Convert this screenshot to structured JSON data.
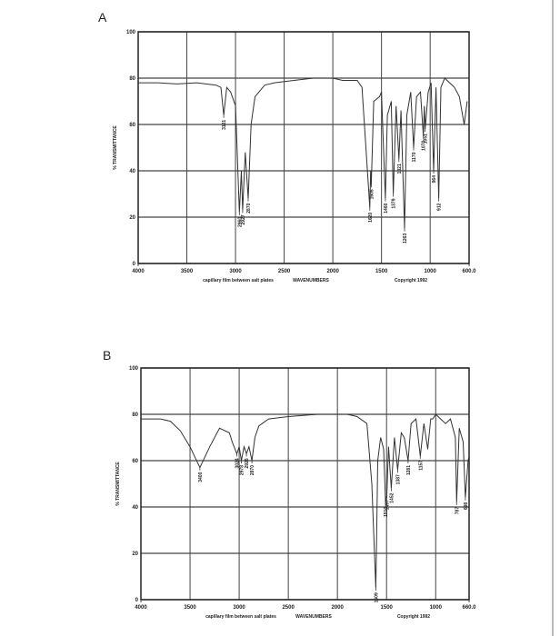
{
  "chart_data": [
    {
      "type": "line",
      "label": "A",
      "x": [
        4000,
        3800,
        3600,
        3400,
        3200,
        3150,
        3121,
        3090,
        3050,
        3000,
        2960,
        2940,
        2927,
        2900,
        2870,
        2840,
        2800,
        2700,
        2600,
        2400,
        2200,
        2000,
        1900,
        1750,
        1700,
        1660,
        1620,
        1612,
        1605,
        1580,
        1520,
        1500,
        1460,
        1440,
        1400,
        1379,
        1350,
        1321,
        1300,
        1263,
        1240,
        1200,
        1170,
        1140,
        1100,
        1070,
        1060,
        1051,
        1020,
        990,
        964,
        940,
        912,
        890,
        850,
        800,
        750,
        700,
        650,
        620
      ],
      "series": [
        {
          "color": "#333333",
          "values": [
            78,
            78,
            77.5,
            78,
            77,
            76,
            64,
            76,
            74,
            68,
            22,
            40,
            23,
            48,
            28,
            60,
            72,
            77,
            78,
            79,
            80,
            80,
            79,
            79,
            76,
            50,
            24,
            40,
            34,
            70,
            72,
            74,
            28,
            64,
            70,
            30,
            68,
            45,
            66,
            15,
            64,
            74,
            50,
            72,
            74,
            55,
            68,
            58,
            74,
            78,
            40,
            76,
            28,
            76,
            80,
            78,
            76,
            72,
            60,
            70
          ]
        }
      ],
      "xlim": [
        4000,
        600
      ],
      "ylim": [
        0,
        100
      ],
      "xticks": [
        4000,
        3500,
        3000,
        2500,
        2000,
        1500,
        1000,
        {
          "value": 600,
          "label": "600.0"
        }
      ],
      "yticks": [
        0,
        20,
        40,
        60,
        80,
        100
      ],
      "grid": true,
      "x_axis_label": "WAVENUMBERS",
      "y_axis_label": "% TRANSMITTANCE",
      "note": "capillary film between salt plates",
      "copyright": "Copyright 1992",
      "peaks": [
        {
          "x": 3121,
          "y": 64
        },
        {
          "x": 2960,
          "y": 22
        },
        {
          "x": 2927,
          "y": 23
        },
        {
          "x": 2870,
          "y": 28
        },
        {
          "x": 1620,
          "y": 24
        },
        {
          "x": 1605,
          "y": 34
        },
        {
          "x": 1460,
          "y": 28
        },
        {
          "x": 1379,
          "y": 30
        },
        {
          "x": 1321,
          "y": 45
        },
        {
          "x": 1263,
          "y": 15
        },
        {
          "x": 1170,
          "y": 50
        },
        {
          "x": 1070,
          "y": 55
        },
        {
          "x": 1051,
          "y": 58
        },
        {
          "x": 964,
          "y": 40
        },
        {
          "x": 912,
          "y": 28
        }
      ]
    },
    {
      "type": "line",
      "label": "B",
      "x": [
        4000,
        3800,
        3700,
        3600,
        3500,
        3400,
        3300,
        3200,
        3100,
        3070,
        3024,
        3000,
        2978,
        2950,
        2926,
        2900,
        2870,
        2840,
        2800,
        2700,
        2500,
        2200,
        2000,
        1900,
        1800,
        1700,
        1650,
        1609,
        1600,
        1590,
        1560,
        1530,
        1510,
        1497,
        1480,
        1452,
        1420,
        1387,
        1350,
        1320,
        1281,
        1250,
        1200,
        1157,
        1120,
        1081,
        1050,
        1030,
        1000,
        950,
        900,
        850,
        800,
        787,
        760,
        720,
        698,
        670,
        660
      ],
      "series": [
        {
          "color": "#333333",
          "values": [
            78,
            78,
            77,
            73,
            66,
            57,
            66,
            74,
            72,
            68,
            63,
            66,
            60,
            66,
            63,
            66,
            60,
            70,
            75,
            78,
            79,
            80,
            80,
            80,
            79,
            76,
            50,
            5,
            30,
            60,
            70,
            65,
            42,
            45,
            66,
            48,
            70,
            56,
            72,
            70,
            60,
            76,
            78,
            62,
            76,
            65,
            78,
            78,
            80,
            78,
            76,
            78,
            70,
            42,
            74,
            68,
            44,
            60,
            62
          ]
        }
      ],
      "xlim": [
        4000,
        660
      ],
      "ylim": [
        0,
        100
      ],
      "xticks": [
        4000,
        3500,
        3000,
        2500,
        2000,
        1500,
        1000,
        {
          "value": 660,
          "label": "660.0"
        }
      ],
      "yticks": [
        0,
        20,
        40,
        60,
        80,
        100
      ],
      "grid": true,
      "x_axis_label": "WAVENUMBERS",
      "y_axis_label": "% TRANSMITTANCE",
      "note": "capillary film between salt plates",
      "copyright": "Copyright 1992",
      "peaks": [
        {
          "x": 3400,
          "y": 57
        },
        {
          "x": 3024,
          "y": 63
        },
        {
          "x": 2978,
          "y": 60
        },
        {
          "x": 2926,
          "y": 63
        },
        {
          "x": 2870,
          "y": 60
        },
        {
          "x": 1609,
          "y": 5
        },
        {
          "x": 1510,
          "y": 42
        },
        {
          "x": 1497,
          "y": 45
        },
        {
          "x": 1452,
          "y": 48
        },
        {
          "x": 1387,
          "y": 56
        },
        {
          "x": 1281,
          "y": 60
        },
        {
          "x": 1157,
          "y": 62
        },
        {
          "x": 787,
          "y": 42
        },
        {
          "x": 698,
          "y": 44
        }
      ]
    }
  ]
}
